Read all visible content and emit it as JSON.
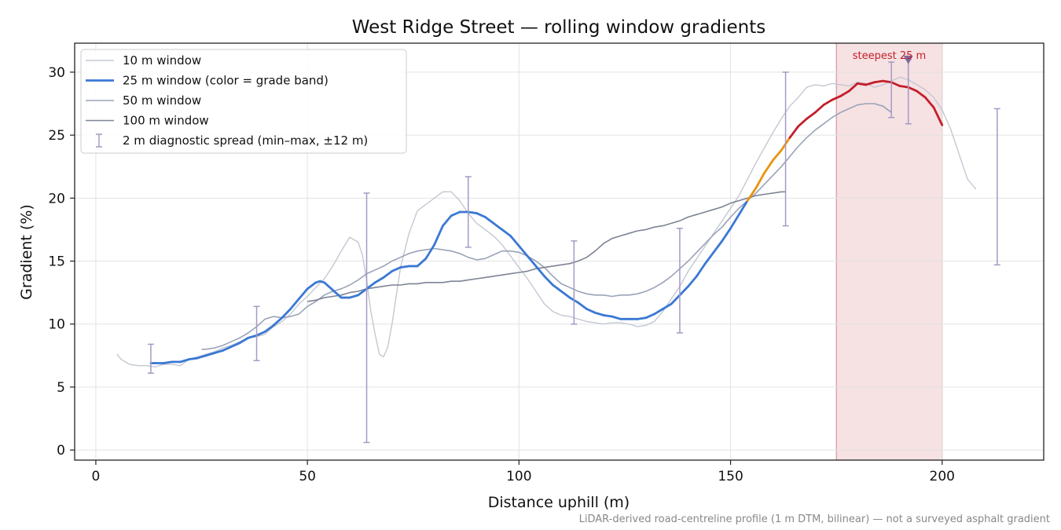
{
  "chart_data": {
    "type": "line",
    "title": "West Ridge Street — rolling window gradients",
    "xlabel": "Distance uphill (m)",
    "ylabel": "Gradient (%)",
    "xlim": [
      -5,
      224
    ],
    "ylim": [
      -0.8,
      32.3
    ],
    "xticks": [
      0,
      50,
      100,
      150,
      200
    ],
    "yticks": [
      0,
      5,
      10,
      15,
      20,
      25,
      30
    ],
    "grid": true,
    "legend_position": "top-left",
    "footnote": "LiDAR-derived road-centreline profile (1 m DTM, bilinear) — not a surveyed asphalt gradient",
    "highlight": {
      "x_start": 175,
      "x_end": 200,
      "label": "steepest 25 m",
      "color": "#e8b4b8",
      "marker_x": 192,
      "marker_y": 31.0
    },
    "grade_band_colors": {
      "low": "#3a78d4",
      "mid": "#e8950f",
      "high": "#c41e2a"
    },
    "series": [
      {
        "name": "10 m window",
        "color": "#c3c8d2",
        "width": 1.4,
        "x": [
          5,
          6,
          8,
          10,
          12,
          14,
          16,
          18,
          20,
          22,
          24,
          26,
          28,
          30,
          32,
          34,
          36,
          38,
          40,
          42,
          44,
          46,
          48,
          50,
          52,
          54,
          56,
          58,
          60,
          62,
          63,
          64,
          65,
          66,
          67,
          68,
          69,
          70,
          72,
          74,
          76,
          78,
          80,
          82,
          84,
          86,
          88,
          90,
          92,
          94,
          96,
          98,
          100,
          102,
          104,
          106,
          108,
          110,
          112,
          114,
          116,
          118,
          120,
          122,
          124,
          126,
          128,
          130,
          132,
          134,
          136,
          138,
          140,
          142,
          144,
          146,
          148,
          150,
          152,
          154,
          156,
          158,
          160,
          162,
          164,
          166,
          168,
          170,
          172,
          174,
          176,
          178,
          180,
          182,
          184,
          186,
          188,
          190,
          192,
          194,
          196,
          198,
          200,
          202,
          204,
          206,
          208
        ],
        "y": [
          7.6,
          7.2,
          6.8,
          6.7,
          6.7,
          6.6,
          6.8,
          6.8,
          6.7,
          7.2,
          7.4,
          7.6,
          7.8,
          8.1,
          8.3,
          8.6,
          8.9,
          9.0,
          9.2,
          9.8,
          10.2,
          10.8,
          11.6,
          12.2,
          12.9,
          13.6,
          14.6,
          15.8,
          16.9,
          16.5,
          15.5,
          13.5,
          11.0,
          9.2,
          7.6,
          7.4,
          8.2,
          10.0,
          14.5,
          17.2,
          19.0,
          19.5,
          20.0,
          20.5,
          20.5,
          19.8,
          18.8,
          18.0,
          17.5,
          17.0,
          16.3,
          15.4,
          14.5,
          13.6,
          12.6,
          11.6,
          11.0,
          10.7,
          10.6,
          10.4,
          10.2,
          10.1,
          10.0,
          10.1,
          10.1,
          10.0,
          9.8,
          9.9,
          10.2,
          11.0,
          12.0,
          13.0,
          14.2,
          15.2,
          16.2,
          17.2,
          18.2,
          19.2,
          20.2,
          21.5,
          22.8,
          24.0,
          25.2,
          26.3,
          27.3,
          28.0,
          28.8,
          29.0,
          28.9,
          29.1,
          29.0,
          28.9,
          29.2,
          29.1,
          28.8,
          29.0,
          29.3,
          29.6,
          29.4,
          29.0,
          28.6,
          28.0,
          27.0,
          25.5,
          23.5,
          21.5,
          20.7
        ]
      },
      {
        "name": "25 m window (color = grade band)",
        "color": "#3a78d4",
        "width": 2.8,
        "x": [
          13,
          14,
          16,
          18,
          20,
          22,
          24,
          26,
          28,
          30,
          32,
          34,
          36,
          38,
          40,
          42,
          44,
          46,
          48,
          50,
          52,
          53,
          54,
          56,
          58,
          60,
          62,
          64,
          66,
          68,
          70,
          72,
          74,
          76,
          78,
          80,
          82,
          84,
          86,
          88,
          90,
          92,
          94,
          96,
          98,
          100,
          102,
          104,
          106,
          108,
          110,
          112,
          114,
          116,
          118,
          120,
          122,
          124,
          126,
          128,
          130,
          132,
          134,
          136,
          138,
          140,
          142,
          144,
          146,
          148,
          150,
          152,
          154,
          156,
          158,
          160,
          162,
          164,
          166,
          168,
          170,
          172,
          174,
          176,
          178,
          180,
          182,
          184,
          186,
          188,
          190,
          192,
          194,
          196,
          198,
          200
        ],
        "y": [
          6.9,
          6.9,
          6.9,
          7.0,
          7.0,
          7.2,
          7.3,
          7.5,
          7.7,
          7.9,
          8.2,
          8.5,
          8.9,
          9.1,
          9.4,
          9.9,
          10.5,
          11.2,
          12.0,
          12.8,
          13.3,
          13.4,
          13.3,
          12.7,
          12.1,
          12.1,
          12.3,
          12.8,
          13.3,
          13.7,
          14.2,
          14.5,
          14.6,
          14.6,
          15.2,
          16.3,
          17.8,
          18.6,
          18.9,
          18.9,
          18.8,
          18.5,
          18.0,
          17.5,
          17.0,
          16.2,
          15.4,
          14.6,
          13.8,
          13.1,
          12.6,
          12.1,
          11.7,
          11.2,
          10.9,
          10.7,
          10.6,
          10.4,
          10.4,
          10.4,
          10.5,
          10.8,
          11.2,
          11.6,
          12.3,
          13.0,
          13.8,
          14.8,
          15.7,
          16.6,
          17.6,
          18.7,
          19.8,
          20.8,
          22.0,
          23.0,
          23.8,
          24.8,
          25.7,
          26.3,
          26.8,
          27.4,
          27.8,
          28.1,
          28.5,
          29.1,
          29.0,
          29.2,
          29.3,
          29.2,
          28.9,
          28.8,
          28.5,
          28.0,
          27.2,
          25.8
        ]
      },
      {
        "name": "50 m window",
        "color": "#9aa3b8",
        "width": 1.6,
        "x": [
          25,
          26,
          28,
          30,
          32,
          34,
          36,
          38,
          40,
          42,
          44,
          46,
          48,
          50,
          52,
          54,
          56,
          58,
          60,
          62,
          64,
          66,
          68,
          70,
          72,
          74,
          76,
          78,
          80,
          82,
          84,
          86,
          88,
          90,
          92,
          94,
          96,
          98,
          100,
          102,
          104,
          106,
          108,
          110,
          112,
          114,
          116,
          118,
          120,
          122,
          124,
          126,
          128,
          130,
          132,
          134,
          136,
          138,
          140,
          142,
          144,
          146,
          148,
          150,
          152,
          154,
          156,
          158,
          160,
          162,
          164,
          166,
          168,
          170,
          172,
          174,
          176,
          178,
          180,
          182,
          184,
          186,
          188
        ],
        "y": [
          8.0,
          8.0,
          8.1,
          8.3,
          8.6,
          8.9,
          9.3,
          9.8,
          10.4,
          10.6,
          10.5,
          10.6,
          10.8,
          11.4,
          11.8,
          12.3,
          12.6,
          12.8,
          13.1,
          13.5,
          14.0,
          14.3,
          14.6,
          15.0,
          15.3,
          15.6,
          15.8,
          15.9,
          16.0,
          15.9,
          15.8,
          15.6,
          15.3,
          15.1,
          15.2,
          15.5,
          15.8,
          15.8,
          15.7,
          15.4,
          15.0,
          14.5,
          13.8,
          13.2,
          12.9,
          12.6,
          12.4,
          12.3,
          12.3,
          12.2,
          12.3,
          12.3,
          12.4,
          12.6,
          12.9,
          13.3,
          13.8,
          14.4,
          15.0,
          15.7,
          16.4,
          17.1,
          17.7,
          18.5,
          19.2,
          19.8,
          20.4,
          21.1,
          21.8,
          22.5,
          23.3,
          24.1,
          24.8,
          25.4,
          25.9,
          26.4,
          26.8,
          27.1,
          27.4,
          27.5,
          27.5,
          27.3,
          26.8
        ]
      },
      {
        "name": "100 m window",
        "color": "#7d8494",
        "width": 1.6,
        "x": [
          50,
          52,
          54,
          56,
          58,
          60,
          62,
          64,
          66,
          68,
          70,
          72,
          74,
          76,
          78,
          80,
          82,
          84,
          86,
          88,
          90,
          92,
          94,
          96,
          98,
          100,
          102,
          104,
          106,
          108,
          110,
          112,
          114,
          116,
          118,
          120,
          122,
          124,
          126,
          128,
          130,
          132,
          134,
          136,
          138,
          140,
          142,
          144,
          146,
          148,
          150,
          152,
          154,
          156,
          158,
          160,
          162,
          163
        ],
        "y": [
          11.8,
          11.9,
          12.1,
          12.2,
          12.3,
          12.5,
          12.6,
          12.8,
          12.9,
          13.0,
          13.1,
          13.1,
          13.2,
          13.2,
          13.3,
          13.3,
          13.3,
          13.4,
          13.4,
          13.5,
          13.6,
          13.7,
          13.8,
          13.9,
          14.0,
          14.1,
          14.2,
          14.4,
          14.5,
          14.6,
          14.7,
          14.8,
          15.0,
          15.3,
          15.8,
          16.4,
          16.8,
          17.0,
          17.2,
          17.4,
          17.5,
          17.7,
          17.8,
          18.0,
          18.2,
          18.5,
          18.7,
          18.9,
          19.1,
          19.3,
          19.6,
          19.8,
          20.0,
          20.2,
          20.3,
          20.4,
          20.5,
          20.5
        ]
      },
      {
        "name": "2 m diagnostic spread (min–max, ±12 m)",
        "type": "errorbar",
        "color": "#a49ac4",
        "x": [
          13,
          38,
          64,
          88,
          113,
          138,
          163,
          188,
          192,
          213
        ],
        "lower": [
          6.1,
          7.1,
          0.6,
          16.1,
          10.0,
          9.3,
          17.8,
          26.4,
          25.9,
          14.7
        ],
        "upper": [
          8.4,
          11.4,
          20.4,
          21.7,
          16.6,
          17.6,
          30.0,
          30.8,
          31.0,
          27.1
        ]
      }
    ]
  }
}
